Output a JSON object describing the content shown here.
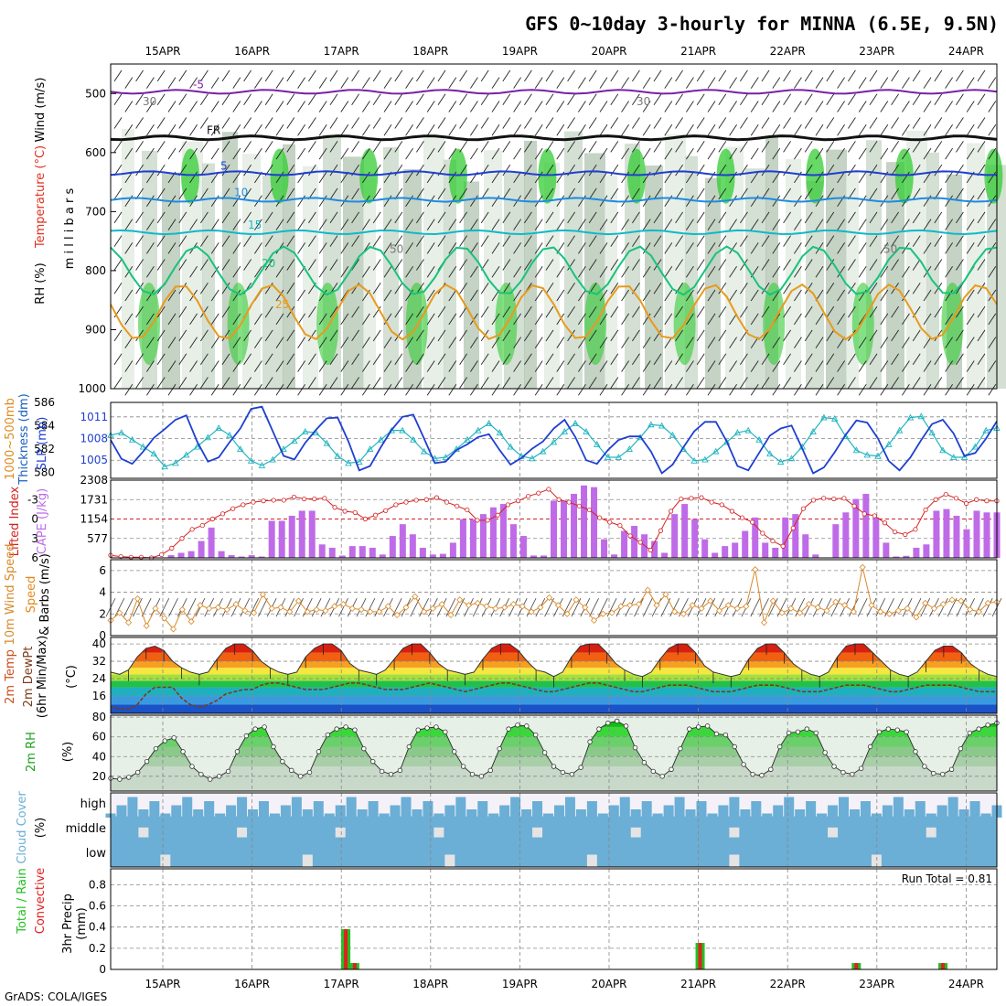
{
  "title": "GFS 0~10day 3-hourly for MINNA (6.5E, 9.5N)",
  "footer": "GrADS: COLA/IGES",
  "colors": {
    "purple": "#7a1fa8",
    "darkblue": "#1f3fd0",
    "midblue": "#1e8be0",
    "cyan": "#10b8c8",
    "green": "#19c27d",
    "orange": "#e89a1e",
    "orangered": "#e0601e",
    "red": "#d42020",
    "rh_dark": "#33cc33",
    "rh_light": "#c8dcc8",
    "cloud": "#6baed6",
    "cloud_bg": "#f4f2f8",
    "cape": "#bf6be8",
    "li": "#d42020",
    "wind": "#d88a2a",
    "slp": "#1f3fd0",
    "thick": "#22b5c0"
  },
  "chart_data": [
    {
      "id": "profile",
      "type": "heatmap",
      "title": "GFS 0~10day 3-hourly for MINNA (6.5E, 9.5N)",
      "ylabel_parts": [
        "Wind (m/s)",
        "Temperature (°C)",
        "RH (%)",
        "m i l l i b a r s"
      ],
      "yticks": [
        500,
        600,
        700,
        800,
        900,
        1000
      ],
      "ylim": [
        450,
        1000
      ],
      "xticks": [
        "15APR",
        "16APR",
        "17APR",
        "18APR",
        "19APR",
        "20APR",
        "21APR",
        "22APR",
        "23APR",
        "24APR"
      ],
      "isotherms": [
        {
          "value": -5,
          "label": "-5",
          "approx_level": 497
        },
        {
          "value": 0,
          "label": "FR",
          "approx_level": 575
        },
        {
          "value": 5,
          "label": "5",
          "approx_level": 635
        },
        {
          "value": 10,
          "label": "10",
          "approx_level": 680
        },
        {
          "value": 15,
          "label": "15",
          "approx_level": 735
        },
        {
          "value": 20,
          "label": "20",
          "approx_level": 800
        },
        {
          "value": 25,
          "label": "25",
          "approx_level": 870
        }
      ],
      "rh_labels": [
        "30",
        "50",
        "30",
        "50"
      ]
    },
    {
      "id": "slp",
      "type": "line",
      "ylabel_left": [
        "1000~500mb",
        "Thickness (dm)"
      ],
      "ylabel_right": "SLP (mb)",
      "yticks_left": [
        580,
        582,
        584,
        586
      ],
      "yticks_right": [
        1005,
        1008,
        1011
      ],
      "ylim_left": [
        579.5,
        586
      ],
      "ylim_right": [
        1002.5,
        1013
      ],
      "series": [
        {
          "name": "SLP (mb)",
          "axis": "right",
          "values": [
            1007.8,
            1005.2,
            1004.5,
            1006.2,
            1008.1,
            1009.3,
            1010.6,
            1011.2,
            1007.6,
            1004.8,
            1005.4,
            1007.5,
            1009.4,
            1012.1,
            1012.4,
            1009.0,
            1005.6,
            1005.1,
            1007.4,
            1009.2,
            1010.8,
            1010.9,
            1007.6,
            1003.6,
            1004.2,
            1006.8,
            1009.2,
            1011.0,
            1011.3,
            1008.0,
            1004.6,
            1004.8,
            1006.4,
            1007.2,
            1008.2,
            1008.6,
            1006.4,
            1004.4,
            1005.3,
            1006.6,
            1007.6,
            1009.4,
            1010.6,
            1008.2,
            1005.0,
            1004.5,
            1006.4,
            1007.8,
            1008.3,
            1008.3,
            1006.2,
            1003.2,
            1004.4,
            1006.8,
            1009.0,
            1010.3,
            1010.3,
            1007.6,
            1004.2,
            1003.6,
            1006.0,
            1008.4,
            1009.4,
            1009.8,
            1006.6,
            1003.2,
            1004.0,
            1006.1,
            1008.5,
            1010.5,
            1010.2,
            1008.0,
            1004.9,
            1003.6,
            1005.4,
            1007.8,
            1010.0,
            1010.6,
            1008.7,
            1005.6,
            1006.0,
            1008.0,
            1010.4
          ]
        },
        {
          "name": "Thickness (dm)",
          "axis": "left",
          "values": [
            583.2,
            583.4,
            582.8,
            582.2,
            581.6,
            580.5,
            580.8,
            581.5,
            582.2,
            583.0,
            583.8,
            583.2,
            582.0,
            581.0,
            580.6,
            581.1,
            582.0,
            582.7,
            583.5,
            583.4,
            582.5,
            581.4,
            580.8,
            580.9,
            582.0,
            582.8,
            583.6,
            583.6,
            582.8,
            581.8,
            581.2,
            581.3,
            582.0,
            582.8,
            583.6,
            584.2,
            583.4,
            582.2,
            581.4,
            581.2,
            581.8,
            582.6,
            583.5,
            584.2,
            583.5,
            582.4,
            581.3,
            581.3,
            582.0,
            583.0,
            584.1,
            584.0,
            583.2,
            582.0,
            581.0,
            581.1,
            581.8,
            582.6,
            583.4,
            583.6,
            582.8,
            581.6,
            580.9,
            581.2,
            582.2,
            583.5,
            584.7,
            584.6,
            583.1,
            581.9,
            581.5,
            581.4,
            582.4,
            583.6,
            584.7,
            584.8,
            583.4,
            581.9,
            581.3,
            581.3,
            582.2,
            583.6,
            583.8
          ]
        }
      ]
    },
    {
      "id": "cape",
      "type": "bar",
      "ylabel_left": "Lifted Index",
      "ylabel_right": "CAPE (J/kg)",
      "yticks_left": [
        -3,
        0,
        3,
        6
      ],
      "yticks_right": [
        577,
        1154,
        1731,
        2308
      ],
      "ylim_right": [
        0,
        2308
      ],
      "ylim_left": [
        -6,
        6
      ],
      "series": [
        {
          "name": "CAPE (J/kg)",
          "values": [
            0,
            0,
            0,
            0,
            0,
            0,
            80,
            150,
            200,
            500,
            900,
            200,
            80,
            40,
            80,
            40,
            1100,
            1100,
            1250,
            1400,
            1400,
            400,
            300,
            70,
            350,
            350,
            300,
            100,
            650,
            1000,
            700,
            300,
            100,
            120,
            450,
            1150,
            1150,
            1300,
            1500,
            1600,
            1000,
            650,
            70,
            70,
            1700,
            1700,
            1900,
            2150,
            2100,
            550,
            100,
            800,
            950,
            700,
            500,
            150,
            1300,
            1600,
            1150,
            550,
            150,
            350,
            450,
            800,
            1200,
            450,
            300,
            1200,
            1300,
            700,
            100,
            0,
            1000,
            1350,
            1750,
            1900,
            1200,
            450,
            40,
            60,
            300,
            400,
            1400,
            1450,
            1250,
            850,
            1400,
            1350,
            1350
          ]
        },
        {
          "name": "Lifted Index",
          "values": [
            5.6,
            5.8,
            5.9,
            5.9,
            6.0,
            5.5,
            4.5,
            3.0,
            1.6,
            1.0,
            0.0,
            -0.8,
            -1.6,
            -2.2,
            -2.6,
            -2.8,
            -2.9,
            -2.9,
            -3.4,
            -3.1,
            -3.1,
            -3.2,
            -1.8,
            -1.2,
            -1.0,
            0.0,
            -0.6,
            -1.3,
            -2.2,
            -2.6,
            -2.9,
            -3.0,
            -3.3,
            -2.6,
            -2.0,
            -1.4,
            0.2,
            0.2,
            -0.6,
            -2.2,
            -2.8,
            -3.5,
            -4.0,
            -4.6,
            -3.0,
            -2.6,
            -2.0,
            -1.4,
            -0.2,
            0.5,
            1.0,
            2.6,
            3.6,
            4.8,
            1.8,
            -1.2,
            -3.1,
            -3.2,
            -3.3,
            -2.6,
            -2.2,
            -1.2,
            -0.2,
            0.5,
            2.2,
            3.4,
            4.2,
            1.4,
            -1.6,
            -2.9,
            -3.2,
            -3.1,
            -3.2,
            -2.0,
            -0.8,
            -0.5,
            0.6,
            2.0,
            2.4,
            1.6,
            -1.4,
            -3.0,
            -3.8,
            -3.2,
            -2.4,
            -3.0,
            -2.8,
            -2.8
          ]
        }
      ]
    },
    {
      "id": "wind10m",
      "type": "line",
      "ylabel": [
        "10m Wind Speed",
        "& Barbs (m/s)"
      ],
      "yticks": [
        0,
        2,
        4,
        6
      ],
      "ylim": [
        0,
        7
      ],
      "series": [
        {
          "name": "10m Wind Speed",
          "values": [
            1.4,
            2.1,
            1.2,
            3.4,
            0.9,
            2.5,
            1.6,
            0.6,
            2.4,
            1.3,
            2.8,
            2.5,
            2.6,
            2.4,
            2.9,
            2.3,
            2.1,
            3.8,
            2.5,
            2.6,
            2.2,
            3.2,
            2.2,
            2.4,
            2.3,
            2.7,
            2.9,
            2.5,
            2.4,
            2.2,
            2.2,
            2.7,
            1.9,
            2.6,
            3.6,
            2.2,
            2.5,
            2.9,
            1.9,
            3.3,
            2.8,
            3.0,
            2.7,
            2.5,
            2.6,
            2.9,
            2.7,
            2.2,
            2.6,
            3.5,
            2.8,
            2.0,
            3.3,
            2.6,
            1.4,
            2.0,
            2.1,
            2.7,
            2.8,
            2.9,
            4.2,
            2.8,
            3.8,
            2.2,
            2.0,
            2.8,
            2.5,
            3.2,
            2.3,
            2.8,
            2.5,
            2.7,
            6.1,
            1.2,
            3.2,
            2.1,
            2.5,
            2.1,
            2.9,
            2.6,
            2.3,
            3.1,
            2.8,
            2.2,
            6.3,
            2.8,
            2.2,
            2.0,
            2.3,
            2.5,
            1.7,
            3.0,
            2.5,
            2.9,
            3.3,
            3.2,
            2.4,
            2.2,
            3.0,
            3.1
          ]
        }
      ]
    },
    {
      "id": "temp2m",
      "type": "area",
      "ylabel": [
        "2m Temp",
        "2m DewPt",
        "(6hr Min/Max)",
        "(°C)"
      ],
      "yticks": [
        16,
        24,
        32,
        40
      ],
      "ylim": [
        8,
        43
      ],
      "series": [
        {
          "name": "2m Temp",
          "values": [
            27,
            26,
            28,
            34,
            38,
            39,
            37,
            32,
            29,
            27,
            26,
            27,
            33,
            38,
            40,
            40,
            37,
            32,
            29,
            27,
            26,
            27,
            34,
            38,
            40,
            40,
            37,
            31,
            28,
            27,
            26,
            28,
            33,
            38,
            40,
            40,
            36,
            31,
            28,
            27,
            26,
            27,
            33,
            38,
            40,
            40,
            37,
            32,
            28,
            27,
            25,
            27,
            34,
            39,
            40,
            40,
            36,
            31,
            28,
            26,
            25,
            27,
            33,
            38,
            40,
            40,
            36,
            30,
            27,
            26,
            25,
            26,
            33,
            38,
            40,
            40,
            36,
            31,
            28,
            26,
            25,
            27,
            34,
            39,
            40,
            40,
            36,
            32,
            28,
            26,
            25,
            27,
            32,
            37,
            39,
            39,
            36,
            31,
            28,
            26,
            25
          ]
        },
        {
          "name": "2m DewPt",
          "values": [
            11,
            10,
            10,
            12,
            17,
            20,
            20,
            20,
            15,
            12,
            11,
            12,
            14,
            17,
            18,
            19,
            19,
            21,
            22,
            22,
            21,
            20,
            19,
            19,
            19,
            20,
            21,
            22,
            22,
            21,
            20,
            19,
            19,
            19,
            20,
            21,
            22,
            21,
            20,
            19,
            18,
            19,
            20,
            21,
            22,
            22,
            21,
            20,
            19,
            18,
            18,
            19,
            20,
            21,
            22,
            22,
            21,
            20,
            19,
            18,
            18,
            19,
            20,
            21,
            21,
            21,
            20,
            19,
            18,
            18,
            18,
            19,
            20,
            21,
            21,
            21,
            20,
            19,
            18,
            18,
            18,
            19,
            20,
            21,
            21,
            21,
            20,
            19,
            18,
            18,
            19,
            20,
            21,
            21,
            21,
            21,
            20,
            19,
            18,
            18,
            18
          ]
        }
      ]
    },
    {
      "id": "rh2m",
      "type": "area",
      "ylabel": [
        "2m RH",
        "(%)"
      ],
      "yticks": [
        20,
        40,
        60,
        80
      ],
      "ylim": [
        5,
        82
      ],
      "series": [
        {
          "name": "2m RH",
          "values": [
            18,
            17,
            19,
            24,
            35,
            48,
            56,
            59,
            45,
            30,
            22,
            17,
            20,
            25,
            45,
            61,
            68,
            70,
            50,
            35,
            26,
            20,
            24,
            45,
            62,
            68,
            70,
            67,
            48,
            35,
            25,
            22,
            26,
            50,
            67,
            69,
            70,
            65,
            45,
            30,
            22,
            20,
            26,
            48,
            68,
            72,
            71,
            62,
            44,
            30,
            24,
            22,
            29,
            55,
            68,
            74,
            76,
            71,
            49,
            34,
            25,
            20,
            27,
            48,
            68,
            70,
            71,
            63,
            62,
            50,
            32,
            22,
            21,
            27,
            50,
            64,
            65,
            68,
            64,
            44,
            30,
            24,
            22,
            28,
            50,
            65,
            68,
            67,
            65,
            45,
            30,
            23,
            22,
            27,
            48,
            64,
            68,
            72,
            74
          ]
        }
      ]
    },
    {
      "id": "cloud",
      "type": "bar",
      "ylabel": [
        "Cloud Cover",
        "(%)"
      ],
      "categories": [
        "high",
        "middle",
        "low"
      ]
    },
    {
      "id": "precip",
      "type": "bar",
      "ylabel_left": [
        "Total / Rain",
        "Convective"
      ],
      "ylabel": [
        "3hr Precip",
        "(mm)"
      ],
      "yticks": [
        0,
        0.2,
        0.4,
        0.6,
        0.8
      ],
      "ylim": [
        0,
        0.95
      ],
      "annotation": "Run Total = 0.81",
      "series": [
        {
          "name": "Total / Rain",
          "x_days": [
            2.05,
            2.15,
            6.02,
            7.77,
            8.74
          ],
          "values": [
            0.38,
            0.06,
            0.25,
            0.06,
            0.06
          ]
        },
        {
          "name": "Convective",
          "x_days": [
            2.05,
            2.15,
            6.02,
            7.77,
            8.74
          ],
          "values": [
            0.38,
            0.06,
            0.25,
            0.06,
            0.06
          ]
        }
      ]
    }
  ]
}
